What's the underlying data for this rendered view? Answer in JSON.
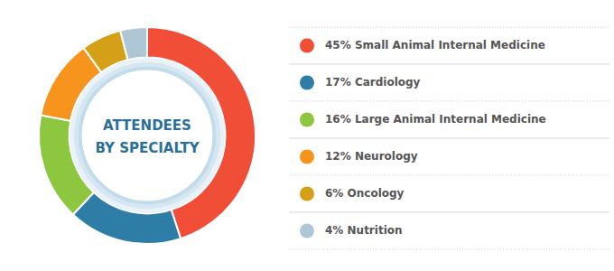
{
  "chart_data": {
    "type": "donut",
    "title": "ATTENDEES",
    "subtitle": "BY SPECIALTY",
    "categories": [
      "45% Small Animal Internal Medicine",
      "17% Cardiology",
      "16% Large Animal Internal Medicine",
      "12% Neurology",
      "6% Oncology",
      "4% Nutrition"
    ],
    "values": [
      45,
      17,
      16,
      12,
      6,
      4
    ],
    "colors": [
      "#f04e37",
      "#2e7da6",
      "#8dc63f",
      "#f7941d",
      "#d4a017",
      "#afc6d4"
    ],
    "legend": "right"
  }
}
